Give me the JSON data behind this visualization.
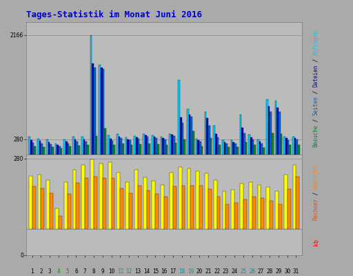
{
  "title": "Tages-Statistik im Monat Juni 2016",
  "days": [
    1,
    2,
    3,
    4,
    5,
    6,
    7,
    8,
    9,
    10,
    11,
    12,
    13,
    14,
    15,
    16,
    17,
    18,
    19,
    20,
    21,
    22,
    23,
    24,
    25,
    26,
    27,
    28,
    29,
    30,
    31
  ],
  "anfragen": [
    320,
    290,
    270,
    200,
    280,
    320,
    330,
    2166,
    1620,
    350,
    370,
    310,
    340,
    380,
    350,
    330,
    380,
    1350,
    820,
    290,
    780,
    530,
    265,
    260,
    730,
    360,
    280,
    1000,
    980,
    320,
    330
  ],
  "dateien": [
    260,
    250,
    230,
    170,
    240,
    270,
    280,
    1650,
    1570,
    290,
    330,
    280,
    310,
    350,
    320,
    305,
    360,
    680,
    730,
    265,
    660,
    370,
    225,
    225,
    490,
    310,
    240,
    870,
    850,
    295,
    305
  ],
  "seiten": [
    215,
    205,
    185,
    145,
    195,
    235,
    240,
    1580,
    1550,
    250,
    300,
    260,
    285,
    330,
    300,
    280,
    340,
    580,
    690,
    235,
    530,
    310,
    195,
    195,
    390,
    270,
    205,
    780,
    780,
    265,
    270
  ],
  "besuche": [
    155,
    140,
    138,
    108,
    148,
    162,
    170,
    340,
    470,
    170,
    195,
    170,
    190,
    205,
    190,
    180,
    215,
    280,
    420,
    150,
    305,
    180,
    140,
    140,
    220,
    170,
    125,
    390,
    380,
    170,
    170
  ],
  "besucher": [
    210,
    215,
    195,
    80,
    185,
    235,
    255,
    275,
    260,
    265,
    225,
    185,
    235,
    205,
    190,
    175,
    225,
    245,
    240,
    230,
    220,
    195,
    150,
    155,
    180,
    185,
    175,
    165,
    150,
    215,
    255
  ],
  "rechner": [
    170,
    162,
    142,
    52,
    138,
    182,
    202,
    208,
    202,
    202,
    162,
    142,
    172,
    152,
    138,
    128,
    168,
    172,
    172,
    172,
    158,
    128,
    98,
    102,
    118,
    128,
    122,
    112,
    98,
    158,
    208
  ],
  "color_anfragen": "#00CCFF",
  "color_dateien": "#0000CC",
  "color_seiten": "#0066CC",
  "color_besuche": "#008833",
  "color_besucher": "#FFFF00",
  "color_rechner": "#FF8800",
  "bg_color": "#AAAAAA",
  "plot_bg": "#BBBBBB",
  "grid_color": "#888888",
  "title_color": "#0000CC",
  "x_special_colors": {
    "4": "#009900",
    "5": "#009900",
    "11": "#009999",
    "12": "#009999",
    "18": "#009999",
    "19": "#009999",
    "25": "#009999",
    "26": "#009999"
  },
  "right_label_colors": {
    "Besuche": "#008833",
    "Seiten": "#0066CC",
    "Dateien": "#0000CC",
    "Anfragen": "#00CCFF",
    "Rechner": "#FF4400",
    "Besucher": "#FF8800"
  }
}
